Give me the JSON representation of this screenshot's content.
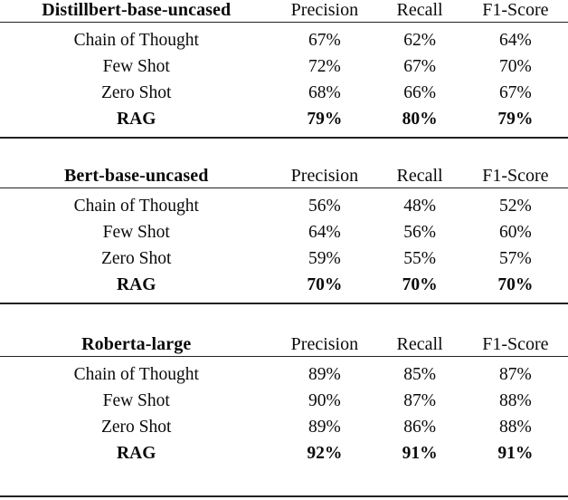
{
  "page": {
    "background": "#ffffff",
    "text_color": "#0a0a0a",
    "rule_color": "#222222"
  },
  "tables": [
    {
      "model": "Distillbert-base-uncased",
      "columns": [
        "Precision",
        "Recall",
        "F1-Score"
      ],
      "rows": [
        {
          "method": "Chain of Thought",
          "precision": "67%",
          "recall": "62%",
          "f1": "64%"
        },
        {
          "method": "Few Shot",
          "precision": "72%",
          "recall": "67%",
          "f1": "70%"
        },
        {
          "method": "Zero Shot",
          "precision": "68%",
          "recall": "66%",
          "f1": "67%"
        },
        {
          "method": "RAG",
          "precision": "79%",
          "recall": "80%",
          "f1": "79%"
        }
      ]
    },
    {
      "model": "Bert-base-uncased",
      "columns": [
        "Precision",
        "Recall",
        "F1-Score"
      ],
      "rows": [
        {
          "method": "Chain of Thought",
          "precision": "56%",
          "recall": "48%",
          "f1": "52%"
        },
        {
          "method": "Few Shot",
          "precision": "64%",
          "recall": "56%",
          "f1": "60%"
        },
        {
          "method": "Zero Shot",
          "precision": "59%",
          "recall": "55%",
          "f1": "57%"
        },
        {
          "method": "RAG",
          "precision": "70%",
          "recall": "70%",
          "f1": "70%"
        }
      ]
    },
    {
      "model": "Roberta-large",
      "columns": [
        "Precision",
        "Recall",
        "F1-Score"
      ],
      "rows": [
        {
          "method": "Chain of Thought",
          "precision": "89%",
          "recall": "85%",
          "f1": "87%"
        },
        {
          "method": "Few Shot",
          "precision": "90%",
          "recall": "87%",
          "f1": "88%"
        },
        {
          "method": "Zero Shot",
          "precision": "89%",
          "recall": "86%",
          "f1": "88%"
        },
        {
          "method": "RAG",
          "precision": "92%",
          "recall": "91%",
          "f1": "91%"
        }
      ]
    }
  ]
}
